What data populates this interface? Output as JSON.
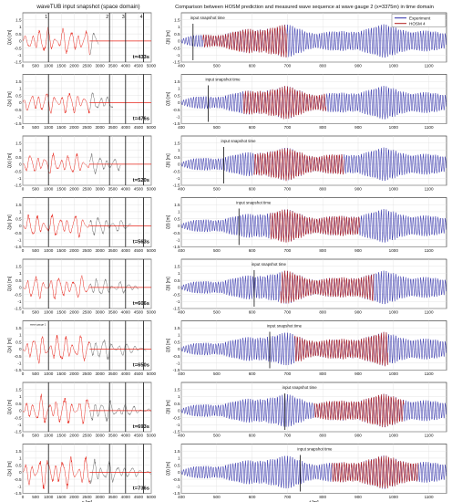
{
  "titles": {
    "left": "waveTUB input snapshot (space domain)",
    "right": "Comparison between HOSM prediction and measured wave sequence at wave gauge 2 (x=3375m) in time domain"
  },
  "legend": {
    "experiment": "Experiment",
    "hosm": "HOSM 4"
  },
  "labels": {
    "snapshot": "input snapshot time",
    "gauge_note": "wave gauge 1"
  },
  "colors": {
    "red": "#e8281e",
    "darkred": "#b11a1a",
    "blue": "#2c2ca8",
    "gray": "#6e6e6e",
    "grid": "#dedede"
  },
  "chart_data": [
    {
      "type": "line",
      "panel": "space-domain snapshots",
      "xlabel": "x [m]",
      "ylabel": "ζ(x) [m]",
      "xlim": [
        0,
        5000
      ],
      "ylim": [
        -1.5,
        2
      ],
      "xticks": [
        0,
        500,
        1000,
        1500,
        2000,
        2500,
        3000,
        3500,
        4000,
        4500,
        5000
      ],
      "yticks": [
        -1.5,
        -1,
        -0.5,
        0,
        0.5,
        1,
        1.5
      ],
      "gauges": [
        {
          "label": "1",
          "x": 1000
        },
        {
          "label": "2",
          "x": 3375
        },
        {
          "label": "3",
          "x": 4000
        },
        {
          "label": "4",
          "x": 4700
        }
      ],
      "grid": true,
      "rows": [
        {
          "time_label": "t=433s",
          "red_end": 2600,
          "gray_end": 2950,
          "amp": 0.9
        },
        {
          "time_label": "t=476s",
          "red_end": 2600,
          "gray_end": 3500,
          "amp": 0.8
        },
        {
          "time_label": "t=520s",
          "red_end": 2600,
          "gray_end": 3800,
          "amp": 0.75
        },
        {
          "time_label": "t=563s",
          "red_end": 2600,
          "gray_end": 4200,
          "amp": 0.8
        },
        {
          "time_label": "t=606s",
          "red_end": 2600,
          "gray_end": 4500,
          "amp": 0.8
        },
        {
          "time_label": "t=650s",
          "red_end": 2600,
          "gray_end": 4800,
          "amp": 1.0
        },
        {
          "time_label": "t=693s",
          "red_end": 2600,
          "gray_end": 5000,
          "amp": 1.0
        },
        {
          "time_label": "t=736s",
          "red_end": 2600,
          "gray_end": 5000,
          "amp": 1.1
        }
      ]
    },
    {
      "type": "line",
      "panel": "time-domain comparison at wave gauge 2",
      "xlabel": "t [m]",
      "ylabel": "ζ(t) [m]",
      "xlim": [
        400,
        1150
      ],
      "ylim": [
        -1.5,
        2
      ],
      "xticks": [
        400,
        500,
        600,
        700,
        800,
        900,
        1000,
        1100
      ],
      "yticks": [
        -1.5,
        -1,
        -0.5,
        0,
        0.5,
        1,
        1.5
      ],
      "legend_position": "top-right",
      "grid": true,
      "series_names": [
        "Experiment",
        "HOSM 4"
      ],
      "rows": [
        {
          "snapshot_t": 433,
          "pred_start": 460,
          "pred_end": 700
        },
        {
          "snapshot_t": 476,
          "pred_start": 575,
          "pred_end": 810
        },
        {
          "snapshot_t": 520,
          "pred_start": 605,
          "pred_end": 860
        },
        {
          "snapshot_t": 563,
          "pred_start": 650,
          "pred_end": 905
        },
        {
          "snapshot_t": 606,
          "pred_start": 680,
          "pred_end": 945
        },
        {
          "snapshot_t": 650,
          "pred_start": 720,
          "pred_end": 985
        },
        {
          "snapshot_t": 693,
          "pred_start": 775,
          "pred_end": 1030
        },
        {
          "snapshot_t": 736,
          "pred_start": 825,
          "pred_end": 1070
        }
      ]
    }
  ]
}
